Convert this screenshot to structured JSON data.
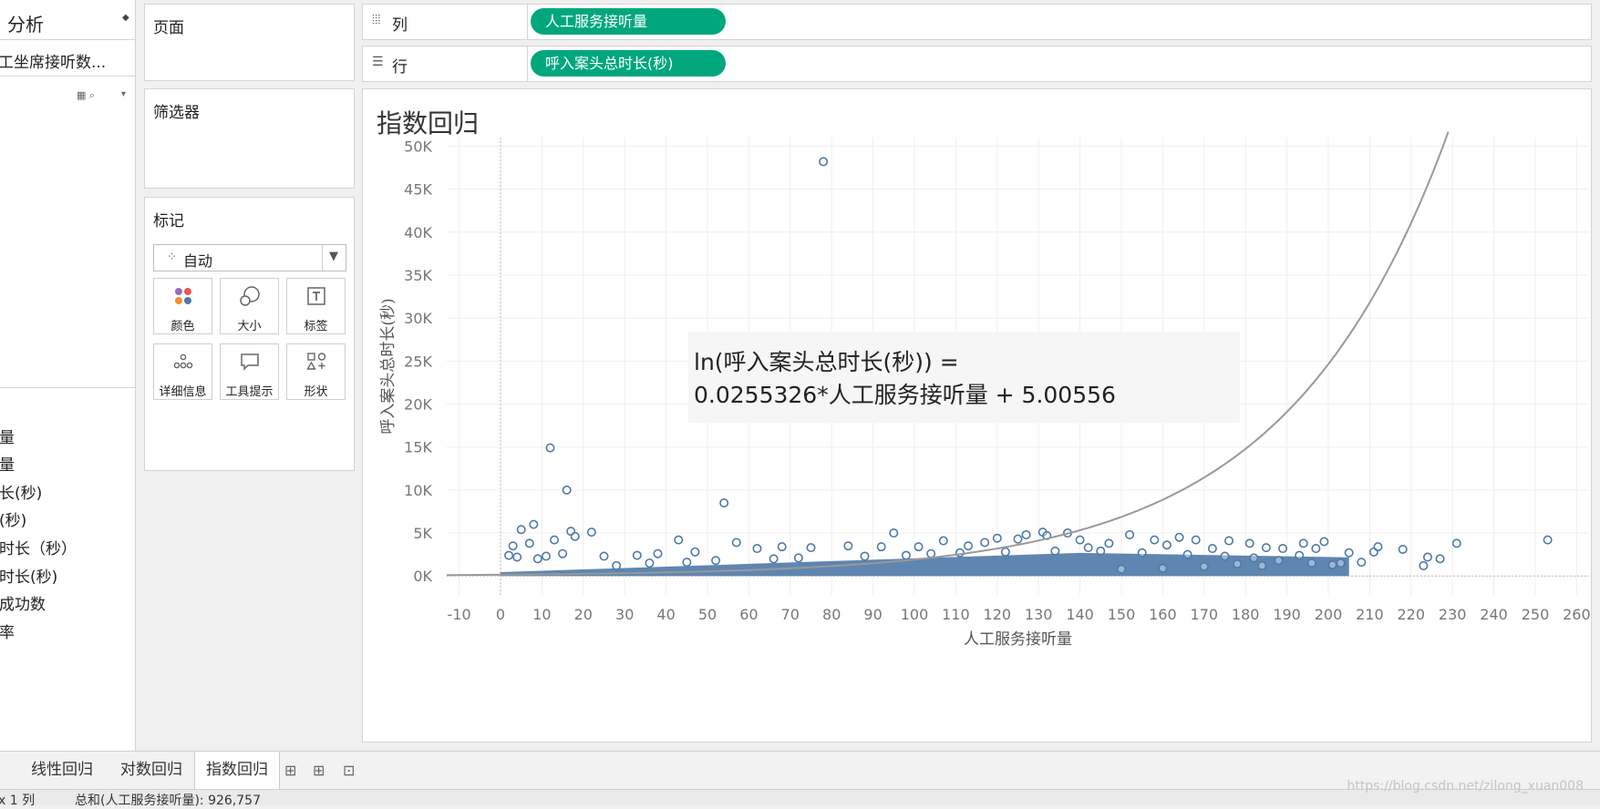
{
  "left_pane": {
    "tab_label": "分析",
    "tab_arrows": "⌃",
    "data_source": "工坐席接听数...",
    "fields": [
      "量",
      "量",
      "长(秒)",
      "(秒)",
      "时长（秒）",
      "时长(秒)",
      "成功数",
      "率"
    ]
  },
  "cards": {
    "pages": "页面",
    "filters": "筛选器",
    "marks": "标记"
  },
  "marks": {
    "type_label": "自动",
    "buttons": [
      {
        "label": "颜色",
        "icon": "color-icon"
      },
      {
        "label": "大小",
        "icon": "size-icon"
      },
      {
        "label": "标签",
        "icon": "label-icon"
      },
      {
        "label": "详细信息",
        "icon": "detail-icon"
      },
      {
        "label": "工具提示",
        "icon": "tooltip-icon"
      },
      {
        "label": "形状",
        "icon": "shape-icon"
      }
    ]
  },
  "shelves": {
    "columns_label": "列",
    "columns_pill": "人工服务接听量",
    "rows_label": "行",
    "rows_pill": "呼入案头总时长(秒)"
  },
  "view": {
    "title": "指数回归",
    "annotation_line1": "ln(呼入案头总时长(秒)) =",
    "annotation_line2": "0.0255326*人工服务接听量 + 5.00556"
  },
  "chart_data": {
    "type": "scatter",
    "title": "指数回归",
    "xlabel": "人工服务接听量",
    "ylabel": "呼入案头总时长(秒)",
    "xlim": [
      -13,
      263
    ],
    "ylim": [
      -2200,
      51000
    ],
    "x_ticks": [
      -10,
      0,
      10,
      20,
      30,
      40,
      50,
      60,
      70,
      80,
      90,
      100,
      110,
      120,
      130,
      140,
      150,
      160,
      170,
      180,
      190,
      200,
      210,
      220,
      230,
      240,
      250,
      260
    ],
    "y_ticks": [
      0,
      5000,
      10000,
      15000,
      20000,
      25000,
      30000,
      35000,
      40000,
      45000,
      50000
    ],
    "y_tick_labels": [
      "0K",
      "5K",
      "10K",
      "15K",
      "20K",
      "25K",
      "30K",
      "35K",
      "40K",
      "45K",
      "50K"
    ],
    "grid": true,
    "trend": {
      "model": "exponential",
      "a": 0.0255326,
      "b": 5.00556
    },
    "colors": {
      "points": "#4e79a7",
      "trend": "#999999"
    },
    "points": [
      [
        78,
        48200
      ],
      [
        12,
        14900
      ],
      [
        16,
        10000
      ],
      [
        54,
        8500
      ],
      [
        5,
        5400
      ],
      [
        8,
        6000
      ],
      [
        13,
        4200
      ],
      [
        17,
        5200
      ],
      [
        18,
        4600
      ],
      [
        22,
        5100
      ],
      [
        3,
        3500
      ],
      [
        7,
        3800
      ],
      [
        43,
        4200
      ],
      [
        57,
        3900
      ],
      [
        95,
        5000
      ],
      [
        107,
        4100
      ],
      [
        120,
        4400
      ],
      [
        125,
        4300
      ],
      [
        127,
        4800
      ],
      [
        131,
        5100
      ],
      [
        132,
        4700
      ],
      [
        137,
        5000
      ],
      [
        140,
        4200
      ],
      [
        152,
        4800
      ],
      [
        158,
        4200
      ],
      [
        164,
        4500
      ],
      [
        168,
        4200
      ],
      [
        176,
        4100
      ],
      [
        181,
        3800
      ],
      [
        185,
        3300
      ],
      [
        189,
        3200
      ],
      [
        193,
        2400
      ],
      [
        194,
        3800
      ],
      [
        197,
        3200
      ],
      [
        199,
        4000
      ],
      [
        203,
        1500
      ],
      [
        205,
        2700
      ],
      [
        208,
        1600
      ],
      [
        211,
        2800
      ],
      [
        212,
        3400
      ],
      [
        218,
        3100
      ],
      [
        223,
        1200
      ],
      [
        224,
        2200
      ],
      [
        227,
        2000
      ],
      [
        231,
        3800
      ],
      [
        253,
        4200
      ],
      [
        2,
        2400
      ],
      [
        4,
        2200
      ],
      [
        9,
        2000
      ],
      [
        11,
        2300
      ],
      [
        15,
        2600
      ],
      [
        25,
        2300
      ],
      [
        33,
        2400
      ],
      [
        38,
        2600
      ],
      [
        47,
        2800
      ],
      [
        62,
        3200
      ],
      [
        68,
        3400
      ],
      [
        75,
        3300
      ],
      [
        84,
        3500
      ],
      [
        92,
        3400
      ],
      [
        101,
        3400
      ],
      [
        113,
        3500
      ],
      [
        117,
        3900
      ],
      [
        142,
        3300
      ],
      [
        147,
        3800
      ],
      [
        161,
        3600
      ],
      [
        172,
        3200
      ],
      [
        28,
        1200
      ],
      [
        36,
        1500
      ],
      [
        45,
        1600
      ],
      [
        52,
        1800
      ],
      [
        66,
        2000
      ],
      [
        72,
        2100
      ],
      [
        88,
        2300
      ],
      [
        98,
        2400
      ],
      [
        104,
        2600
      ],
      [
        111,
        2700
      ],
      [
        122,
        2800
      ],
      [
        134,
        2900
      ],
      [
        145,
        2900
      ],
      [
        155,
        2700
      ],
      [
        166,
        2500
      ],
      [
        175,
        2300
      ],
      [
        182,
        2100
      ],
      [
        188,
        1800
      ],
      [
        196,
        1500
      ],
      [
        201,
        1300
      ],
      [
        184,
        1200
      ],
      [
        178,
        1400
      ],
      [
        170,
        1100
      ],
      [
        160,
        900
      ],
      [
        150,
        800
      ]
    ]
  },
  "bottom": {
    "tabs": [
      "线性回归",
      "对数回归",
      "指数回归"
    ],
    "status_left": "x 1 列",
    "status_sum": "总和(人工服务接听量): 926,757",
    "watermark": "https://blog.csdn.net/zilong_xuan008"
  }
}
